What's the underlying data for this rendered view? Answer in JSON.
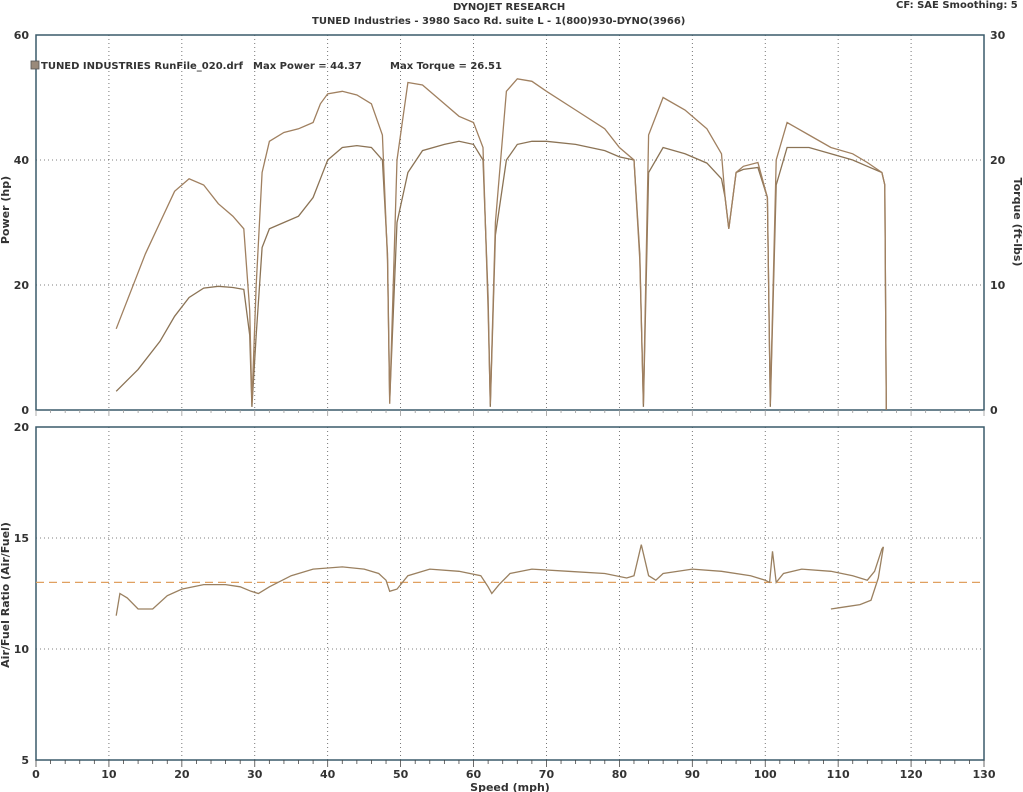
{
  "header": {
    "title": "DYNOJET RESEARCH",
    "subtitle": "TUNED Industries - 3980 Saco Rd. suite L - 1(800)930-DYNO(3966)",
    "settings": "CF: SAE  Smoothing: 5"
  },
  "legend": {
    "run": "TUNED INDUSTRIES RunFile_020.drf",
    "max_power": "Max Power = 44.37",
    "max_torque": "Max Torque = 26.51"
  },
  "colors": {
    "power": "#8b7355",
    "torque": "#a08060",
    "afr": "#9a8060",
    "afr_target": "#e0a060",
    "grid": "#555555",
    "axis": "#3a5a6a"
  },
  "chart_data": [
    {
      "type": "line",
      "xlabel": "Speed (mph)",
      "ylabel": "Power (hp)",
      "y2label": "Torque (ft-lbs)",
      "xlim": [
        0,
        130
      ],
      "ylim": [
        0,
        60
      ],
      "y2lim": [
        0,
        30
      ],
      "xticks": [
        0,
        10,
        20,
        30,
        40,
        50,
        60,
        70,
        80,
        90,
        100,
        110,
        120,
        130
      ],
      "yticks": [
        0,
        20,
        40,
        60
      ],
      "y2ticks": [
        0,
        10,
        20,
        30
      ],
      "grid": true,
      "series": [
        {
          "axis": "left",
          "points": [
            [
              11,
              3
            ],
            [
              14,
              6.5
            ],
            [
              17,
              11
            ],
            [
              19,
              15
            ],
            [
              21,
              18
            ],
            [
              23,
              19.5
            ],
            [
              25,
              19.8
            ],
            [
              27,
              19.6
            ],
            [
              28.5,
              19.3
            ],
            [
              29.3,
              12
            ],
            [
              29.6,
              0.5
            ],
            [
              30.2,
              12
            ],
            [
              31,
              26
            ],
            [
              32,
              29
            ],
            [
              34,
              30
            ],
            [
              36,
              31
            ],
            [
              38,
              34
            ],
            [
              39,
              37
            ],
            [
              40,
              40
            ],
            [
              42,
              42
            ],
            [
              44,
              42.3
            ],
            [
              46,
              42
            ],
            [
              47.5,
              40
            ],
            [
              48.2,
              25
            ],
            [
              48.5,
              1.5
            ],
            [
              49.5,
              30
            ],
            [
              51,
              38
            ],
            [
              53,
              41.5
            ],
            [
              56,
              42.5
            ],
            [
              58,
              43
            ],
            [
              60,
              42.5
            ],
            [
              61.3,
              40
            ],
            [
              62,
              18
            ],
            [
              62.3,
              0.5
            ],
            [
              63,
              28
            ],
            [
              64.5,
              40
            ],
            [
              66,
              42.5
            ],
            [
              68,
              43
            ],
            [
              70,
              43
            ],
            [
              74,
              42.5
            ],
            [
              78,
              41.5
            ],
            [
              80,
              40.5
            ],
            [
              82,
              40
            ],
            [
              82.8,
              25
            ],
            [
              83.3,
              0.5
            ],
            [
              84,
              38
            ],
            [
              86,
              42
            ],
            [
              89,
              41
            ],
            [
              92,
              39.5
            ],
            [
              94,
              37
            ],
            [
              94.5,
              34
            ],
            [
              95,
              29
            ],
            [
              96,
              38
            ],
            [
              97,
              38.5
            ],
            [
              99,
              38.8
            ],
            [
              100.3,
              34
            ],
            [
              100.7,
              0.5
            ],
            [
              101.5,
              36
            ],
            [
              103,
              42
            ],
            [
              106,
              42
            ],
            [
              109,
              41
            ],
            [
              112,
              40
            ],
            [
              114,
              39
            ],
            [
              116,
              38
            ],
            [
              116.4,
              36
            ],
            [
              116.6,
              0
            ]
          ]
        },
        {
          "axis": "right",
          "points": [
            [
              11,
              6.5
            ],
            [
              13,
              9.5
            ],
            [
              15,
              12.5
            ],
            [
              17,
              15
            ],
            [
              19,
              17.5
            ],
            [
              21,
              18.5
            ],
            [
              23,
              18
            ],
            [
              25,
              16.5
            ],
            [
              27,
              15.5
            ],
            [
              28.5,
              14.5
            ],
            [
              29.3,
              8
            ],
            [
              29.6,
              0.5
            ],
            [
              30.2,
              10
            ],
            [
              31,
              19
            ],
            [
              32,
              21.5
            ],
            [
              34,
              22.2
            ],
            [
              36,
              22.5
            ],
            [
              38,
              23
            ],
            [
              39,
              24.5
            ],
            [
              40,
              25.3
            ],
            [
              42,
              25.5
            ],
            [
              44,
              25.2
            ],
            [
              46,
              24.5
            ],
            [
              47.5,
              22
            ],
            [
              48.2,
              12
            ],
            [
              48.5,
              0.5
            ],
            [
              49.5,
              20
            ],
            [
              51,
              26.2
            ],
            [
              53,
              26
            ],
            [
              56,
              24.5
            ],
            [
              58,
              23.5
            ],
            [
              60,
              23
            ],
            [
              61.3,
              21
            ],
            [
              62,
              8
            ],
            [
              62.3,
              0.5
            ],
            [
              63,
              15
            ],
            [
              64.5,
              25.5
            ],
            [
              66,
              26.5
            ],
            [
              68,
              26.3
            ],
            [
              70,
              25.5
            ],
            [
              74,
              24
            ],
            [
              78,
              22.5
            ],
            [
              80,
              21
            ],
            [
              82,
              20
            ],
            [
              82.8,
              12
            ],
            [
              83.3,
              0.5
            ],
            [
              84,
              22
            ],
            [
              86,
              25
            ],
            [
              89,
              24
            ],
            [
              92,
              22.5
            ],
            [
              94,
              20.5
            ],
            [
              94.5,
              17
            ],
            [
              95,
              14.5
            ],
            [
              96,
              19
            ],
            [
              97,
              19.5
            ],
            [
              99,
              19.8
            ],
            [
              100.3,
              17
            ],
            [
              100.7,
              0.5
            ],
            [
              101.5,
              20
            ],
            [
              103,
              23
            ],
            [
              106,
              22
            ],
            [
              109,
              21
            ],
            [
              112,
              20.5
            ],
            [
              114,
              19.8
            ],
            [
              116,
              19
            ],
            [
              116.4,
              18
            ],
            [
              116.6,
              0
            ]
          ]
        }
      ]
    },
    {
      "type": "line",
      "xlabel": "Speed (mph)",
      "ylabel": "Air/Fuel Ratio (Air/Fuel)",
      "xlim": [
        0,
        130
      ],
      "ylim": [
        5,
        20
      ],
      "xticks": [
        0,
        10,
        20,
        30,
        40,
        50,
        60,
        70,
        80,
        90,
        100,
        110,
        120,
        130
      ],
      "yticks": [
        5,
        10,
        15,
        20
      ],
      "grid": true,
      "target_afr": 13.0,
      "series": [
        {
          "points": [
            [
              11,
              11.5
            ],
            [
              11.5,
              12.5
            ],
            [
              12.5,
              12.3
            ],
            [
              14,
              11.8
            ],
            [
              16,
              11.8
            ],
            [
              18,
              12.4
            ],
            [
              20,
              12.7
            ],
            [
              23,
              12.9
            ],
            [
              26,
              12.9
            ],
            [
              28,
              12.8
            ],
            [
              29.5,
              12.6
            ],
            [
              30.5,
              12.5
            ],
            [
              32,
              12.8
            ],
            [
              35,
              13.3
            ],
            [
              38,
              13.6
            ],
            [
              42,
              13.7
            ],
            [
              45,
              13.6
            ],
            [
              47,
              13.4
            ],
            [
              48,
              13.1
            ],
            [
              48.5,
              12.6
            ],
            [
              49.5,
              12.7
            ],
            [
              51,
              13.3
            ],
            [
              54,
              13.6
            ],
            [
              58,
              13.5
            ],
            [
              61,
              13.3
            ],
            [
              62,
              12.8
            ],
            [
              62.5,
              12.5
            ],
            [
              63.5,
              12.9
            ],
            [
              65,
              13.4
            ],
            [
              68,
              13.6
            ],
            [
              73,
              13.5
            ],
            [
              78,
              13.4
            ],
            [
              81,
              13.2
            ],
            [
              82,
              13.3
            ],
            [
              83,
              14.7
            ],
            [
              84,
              13.3
            ],
            [
              85,
              13.1
            ],
            [
              86,
              13.4
            ],
            [
              90,
              13.6
            ],
            [
              94,
              13.5
            ],
            [
              98,
              13.3
            ],
            [
              100,
              13.1
            ],
            [
              100.6,
              13.0
            ],
            [
              101,
              14.4
            ],
            [
              101.5,
              13.0
            ],
            [
              102.5,
              13.4
            ],
            [
              105,
              13.6
            ],
            [
              109,
              13.5
            ],
            [
              112,
              13.3
            ],
            [
              114,
              13.1
            ],
            [
              115,
              13.5
            ],
            [
              116,
              14.5
            ],
            [
              116.2,
              14.6
            ],
            [
              115.5,
              13.2
            ],
            [
              114.5,
              12.2
            ],
            [
              113,
              12.0
            ],
            [
              111,
              11.9
            ],
            [
              109,
              11.8
            ]
          ]
        }
      ]
    }
  ]
}
